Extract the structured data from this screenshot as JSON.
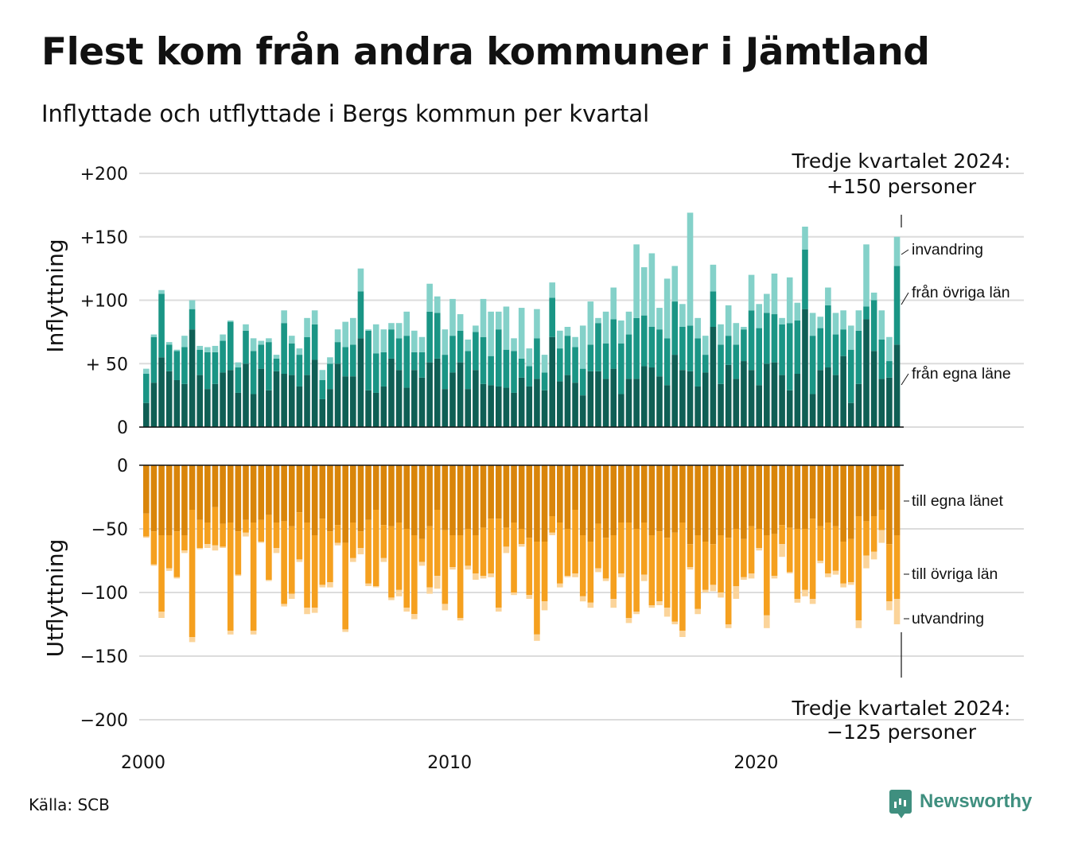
{
  "title": "Flest kom från andra kommuner i Jämtland",
  "subtitle": "Inflyttade och utflyttade i Bergs kommun per kvartal",
  "source": "Källa: SCB",
  "brand": "Newsworthy",
  "colors": {
    "in_egna": "#0f5f55",
    "in_ovriga": "#1a9585",
    "in_invandring": "#84d1c9",
    "out_egna": "#d9850a",
    "out_ovriga": "#f5a01f",
    "out_utvandring": "#fbd49a",
    "grid": "#dcdcdc"
  },
  "chart_data": [
    {
      "type": "bar",
      "stacked": true,
      "ylabel": "Inflyttning",
      "yticks": [
        "+200",
        "+150",
        "+100",
        "+ 50",
        "0"
      ],
      "ylim": [
        0,
        200
      ],
      "annotation": [
        "Tredje kvartalet 2024:",
        "+150 personer"
      ],
      "series_labels": [
        "invandring",
        "från övriga län",
        "från egna läne"
      ],
      "x": [
        "2000Q1",
        "2000Q2",
        "2000Q3",
        "2000Q4",
        "2001Q1",
        "2001Q2",
        "2001Q3",
        "2001Q4",
        "2002Q1",
        "2002Q2",
        "2002Q3",
        "2002Q4",
        "2003Q1",
        "2003Q2",
        "2003Q3",
        "2003Q4",
        "2004Q1",
        "2004Q2",
        "2004Q3",
        "2004Q4",
        "2005Q1",
        "2005Q2",
        "2005Q3",
        "2005Q4",
        "2006Q1",
        "2006Q2",
        "2006Q3",
        "2006Q4",
        "2007Q1",
        "2007Q2",
        "2007Q3",
        "2007Q4",
        "2008Q1",
        "2008Q2",
        "2008Q3",
        "2008Q4",
        "2009Q1",
        "2009Q2",
        "2009Q3",
        "2009Q4",
        "2010Q1",
        "2010Q2",
        "2010Q3",
        "2010Q4",
        "2011Q1",
        "2011Q2",
        "2011Q3",
        "2011Q4",
        "2012Q1",
        "2012Q2",
        "2012Q3",
        "2012Q4",
        "2013Q1",
        "2013Q2",
        "2013Q3",
        "2013Q4",
        "2014Q1",
        "2014Q2",
        "2014Q3",
        "2014Q4",
        "2015Q1",
        "2015Q2",
        "2015Q3",
        "2015Q4",
        "2016Q1",
        "2016Q2",
        "2016Q3",
        "2016Q4",
        "2017Q1",
        "2017Q2",
        "2017Q3",
        "2017Q4",
        "2018Q1",
        "2018Q2",
        "2018Q3",
        "2018Q4",
        "2019Q1",
        "2019Q2",
        "2019Q3",
        "2019Q4",
        "2020Q1",
        "2020Q2",
        "2020Q3",
        "2020Q4",
        "2021Q1",
        "2021Q2",
        "2021Q3",
        "2021Q4",
        "2022Q1",
        "2022Q2",
        "2022Q3",
        "2022Q4",
        "2023Q1",
        "2023Q2",
        "2023Q3",
        "2023Q4",
        "2024Q1",
        "2024Q2",
        "2024Q3"
      ],
      "series": [
        {
          "name": "från egna läne",
          "values": [
            19,
            35,
            55,
            44,
            37,
            34,
            77,
            41,
            30,
            34,
            43,
            45,
            27,
            50,
            26,
            46,
            29,
            44,
            42,
            41,
            32,
            41,
            53,
            22,
            30,
            50,
            40,
            40,
            70,
            29,
            27,
            32,
            54,
            45,
            31,
            45,
            39,
            51,
            54,
            30,
            43,
            51,
            30,
            45,
            34,
            33,
            32,
            31,
            27,
            39,
            32,
            38,
            29,
            71,
            36,
            41,
            35,
            25,
            44,
            44,
            38,
            46,
            26,
            38,
            38,
            48,
            47,
            40,
            33,
            57,
            45,
            44,
            32,
            43,
            79,
            34,
            49,
            38,
            52,
            45,
            33,
            50,
            51,
            41,
            29,
            42,
            93,
            26,
            45,
            47,
            41,
            56,
            19,
            34,
            85,
            60,
            38,
            39,
            65
          ]
        },
        {
          "name": "från övriga län",
          "values": [
            23,
            36,
            50,
            21,
            23,
            29,
            16,
            20,
            29,
            25,
            25,
            38,
            20,
            26,
            34,
            19,
            38,
            10,
            40,
            25,
            25,
            30,
            28,
            15,
            20,
            17,
            23,
            25,
            37,
            47,
            31,
            27,
            23,
            25,
            41,
            14,
            20,
            40,
            36,
            27,
            29,
            25,
            30,
            30,
            37,
            23,
            45,
            30,
            33,
            15,
            16,
            32,
            14,
            31,
            26,
            31,
            28,
            21,
            21,
            38,
            28,
            39,
            40,
            35,
            48,
            40,
            32,
            37,
            37,
            42,
            34,
            36,
            38,
            14,
            28,
            31,
            23,
            27,
            25,
            47,
            45,
            40,
            38,
            40,
            53,
            42,
            47,
            46,
            33,
            49,
            32,
            21,
            42,
            42,
            10,
            40,
            31,
            13,
            62
          ]
        },
        {
          "name": "invandring",
          "values": [
            4,
            2,
            3,
            2,
            1,
            9,
            7,
            3,
            4,
            5,
            5,
            1,
            4,
            5,
            10,
            3,
            3,
            3,
            10,
            6,
            5,
            15,
            11,
            8,
            5,
            10,
            20,
            21,
            18,
            1,
            23,
            18,
            5,
            12,
            19,
            17,
            12,
            22,
            13,
            20,
            29,
            13,
            9,
            5,
            30,
            35,
            14,
            34,
            10,
            40,
            14,
            23,
            14,
            12,
            14,
            7,
            8,
            34,
            34,
            4,
            25,
            25,
            18,
            18,
            58,
            38,
            58,
            17,
            47,
            28,
            18,
            89,
            16,
            15,
            21,
            16,
            24,
            17,
            2,
            28,
            19,
            15,
            32,
            5,
            36,
            14,
            18,
            18,
            9,
            14,
            17,
            15,
            19,
            16,
            49,
            6,
            23,
            19,
            23
          ]
        }
      ]
    },
    {
      "type": "bar",
      "stacked": true,
      "ylabel": "Utflyttning",
      "yticks": [
        "0",
        "−50",
        "−100",
        "−150",
        "−200"
      ],
      "ylim": [
        -200,
        0
      ],
      "annotation": [
        "Tredje kvartalet 2024:",
        "−125 personer"
      ],
      "series_labels": [
        "till egna länet",
        "till övriga län",
        "utvandring"
      ],
      "xticks": [
        "2000",
        "2010",
        "2020"
      ],
      "series": [
        {
          "name": "till egna länet",
          "values": [
            -38,
            -52,
            -55,
            -55,
            -52,
            -55,
            -35,
            -43,
            -45,
            -33,
            -46,
            -45,
            -52,
            -43,
            -45,
            -43,
            -39,
            -45,
            -44,
            -48,
            -37,
            -45,
            -55,
            -42,
            -52,
            -47,
            -61,
            -45,
            -52,
            -43,
            -35,
            -47,
            -48,
            -45,
            -50,
            -55,
            -58,
            -48,
            -35,
            -51,
            -55,
            -55,
            -50,
            -55,
            -49,
            -42,
            -42,
            -49,
            -45,
            -50,
            -57,
            -60,
            -60,
            -40,
            -45,
            -50,
            -35,
            -55,
            -60,
            -46,
            -57,
            -55,
            -45,
            -45,
            -50,
            -45,
            -55,
            -52,
            -57,
            -53,
            -45,
            -62,
            -55,
            -60,
            -62,
            -55,
            -57,
            -50,
            -58,
            -48,
            -50,
            -55,
            -54,
            -47,
            -49,
            -50,
            -50,
            -42,
            -48,
            -45,
            -48,
            -60,
            -58,
            -40,
            -44,
            -40,
            -35,
            -62,
            -55
          ]
        },
        {
          "name": "till övriga län",
          "values": [
            -18,
            -26,
            -60,
            -26,
            -36,
            -12,
            -100,
            -22,
            -17,
            -30,
            -18,
            -85,
            -34,
            -10,
            -85,
            -17,
            -51,
            -20,
            -65,
            -53,
            -37,
            -67,
            -57,
            -52,
            -40,
            -14,
            -68,
            -28,
            -13,
            -50,
            -60,
            -26,
            -56,
            -53,
            -62,
            -62,
            -18,
            -48,
            -52,
            -58,
            -25,
            -65,
            -29,
            -30,
            -38,
            -43,
            -70,
            -15,
            -55,
            -12,
            -45,
            -73,
            -47,
            -13,
            -48,
            -37,
            -50,
            -48,
            -48,
            -35,
            -32,
            -50,
            -40,
            -75,
            -65,
            -41,
            -55,
            -55,
            -55,
            -70,
            -85,
            -18,
            -58,
            -38,
            -32,
            -45,
            -68,
            -45,
            -30,
            -37,
            -15,
            -63,
            -33,
            -15,
            -35,
            -55,
            -48,
            -63,
            -27,
            -40,
            -35,
            -33,
            -34,
            -82,
            -27,
            -28,
            -16,
            -45,
            -50
          ]
        },
        {
          "name": "utvandring",
          "values": [
            -1,
            -1,
            -5,
            -2,
            -1,
            -2,
            -4,
            -1,
            -3,
            -4,
            -1,
            -3,
            -1,
            -3,
            -3,
            -1,
            -1,
            -4,
            -2,
            -4,
            -2,
            -5,
            -4,
            -2,
            -4,
            -2,
            -2,
            -3,
            -5,
            -2,
            -1,
            -3,
            -2,
            -5,
            -3,
            -4,
            -3,
            -5,
            -10,
            -5,
            -2,
            -2,
            -3,
            -5,
            -2,
            -3,
            -3,
            -5,
            -2,
            -2,
            -3,
            -5,
            -7,
            -2,
            -3,
            -1,
            -3,
            -4,
            -4,
            -3,
            -2,
            -7,
            -3,
            -4,
            -2,
            -5,
            -2,
            -3,
            -7,
            -2,
            -5,
            -2,
            -4,
            -2,
            -5,
            -4,
            -3,
            -10,
            -2,
            -4,
            -2,
            -10,
            -2,
            -10,
            -1,
            -3,
            -5,
            -4,
            -2,
            -3,
            -3,
            -3,
            -2,
            -6,
            -10,
            -6,
            -10,
            -7,
            -20
          ]
        }
      ]
    }
  ]
}
